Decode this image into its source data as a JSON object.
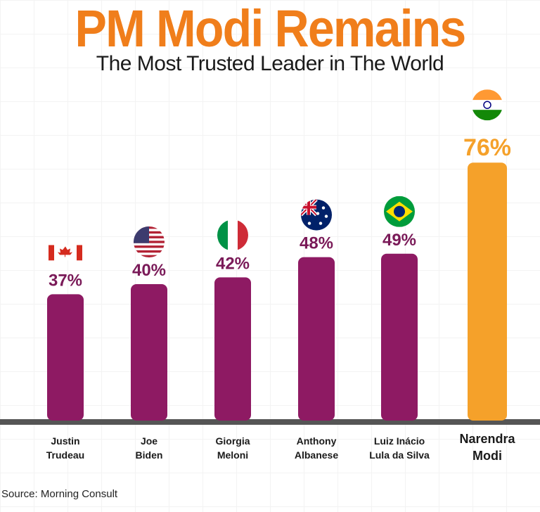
{
  "header": {
    "title": "PM Modi Remains",
    "subtitle": "The Most Trusted Leader in The World"
  },
  "source": "Source: Morning Consult",
  "colors": {
    "title": "#f07e1b",
    "bar": "#8e1a63",
    "highlight_bar": "#f5a12a",
    "value_text": "#7a1a58",
    "highlight_value_text": "#f5a12a",
    "baseline": "#555555"
  },
  "chart_data": {
    "type": "bar",
    "categories": [
      "Justin Trudeau",
      "Joe Biden",
      "Giorgia Meloni",
      "Anthony Albanese",
      "Luiz Inácio Lula da Silva",
      "Narendra Modi"
    ],
    "category_lines": [
      [
        "Justin",
        "Trudeau"
      ],
      [
        "Joe",
        "Biden"
      ],
      [
        "Giorgia",
        "Meloni"
      ],
      [
        "Anthony",
        "Albanese"
      ],
      [
        "Luiz Inácio",
        "Lula da Silva"
      ],
      [
        "Narendra",
        "Modi"
      ]
    ],
    "values": [
      37,
      40,
      42,
      48,
      49,
      76
    ],
    "value_labels": [
      "37%",
      "40%",
      "42%",
      "48%",
      "49%",
      "76%"
    ],
    "flags": [
      "canada-flag",
      "usa-flag",
      "italy-flag",
      "australia-flag",
      "brazil-flag",
      "india-flag"
    ],
    "highlight": "Narendra Modi",
    "grid": true
  }
}
